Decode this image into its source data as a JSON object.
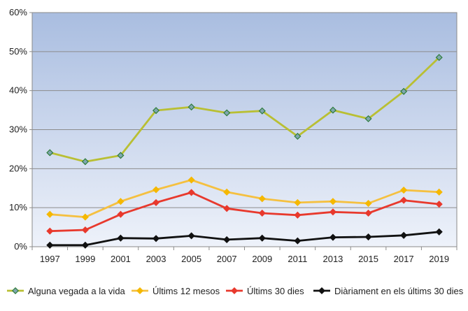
{
  "chart_data": {
    "type": "line",
    "title": "",
    "xlabel": "",
    "ylabel": "",
    "x": [
      "1997",
      "1999",
      "2001",
      "2003",
      "2005",
      "2007",
      "2009",
      "2011",
      "2013",
      "2015",
      "2017",
      "2019"
    ],
    "y_ticks": [
      "0%",
      "10%",
      "20%",
      "30%",
      "40%",
      "50%",
      "60%"
    ],
    "ylim": [
      0,
      60
    ],
    "y_unit": "%",
    "grid": true,
    "legend_position": "bottom",
    "background": {
      "top": "#a9bde0",
      "bottom": "#eef2fa"
    },
    "series": [
      {
        "name": "Alguna vegada a la vida",
        "color": "#b9bf33",
        "marker": "diamond",
        "marker_fill": "#7fa6b0",
        "marker_stroke": "#2f7d3a",
        "values": [
          24.1,
          21.8,
          23.4,
          34.9,
          35.8,
          34.3,
          34.8,
          28.3,
          35.0,
          32.8,
          39.8,
          48.5
        ]
      },
      {
        "name": "Últims 12 mesos",
        "color": "#f5c040",
        "marker": "diamond",
        "marker_fill": "#f5b800",
        "marker_stroke": "#f5b800",
        "values": [
          8.3,
          7.6,
          11.6,
          14.6,
          17.1,
          14.0,
          12.3,
          11.3,
          11.6,
          11.1,
          14.5,
          14.0
        ]
      },
      {
        "name": "Últims 30 dies",
        "color": "#e8392d",
        "marker": "diamond",
        "marker_fill": "#e8392d",
        "marker_stroke": "#e8392d",
        "values": [
          4.0,
          4.3,
          8.3,
          11.3,
          13.9,
          9.8,
          8.6,
          8.1,
          8.9,
          8.6,
          11.9,
          10.9
        ]
      },
      {
        "name": "Diàriament en els últims 30 dies",
        "color": "#111111",
        "marker": "diamond",
        "marker_fill": "#111111",
        "marker_stroke": "#111111",
        "values": [
          0.4,
          0.4,
          2.2,
          2.1,
          2.8,
          1.8,
          2.2,
          1.5,
          2.4,
          2.5,
          2.9,
          3.8
        ]
      }
    ]
  }
}
